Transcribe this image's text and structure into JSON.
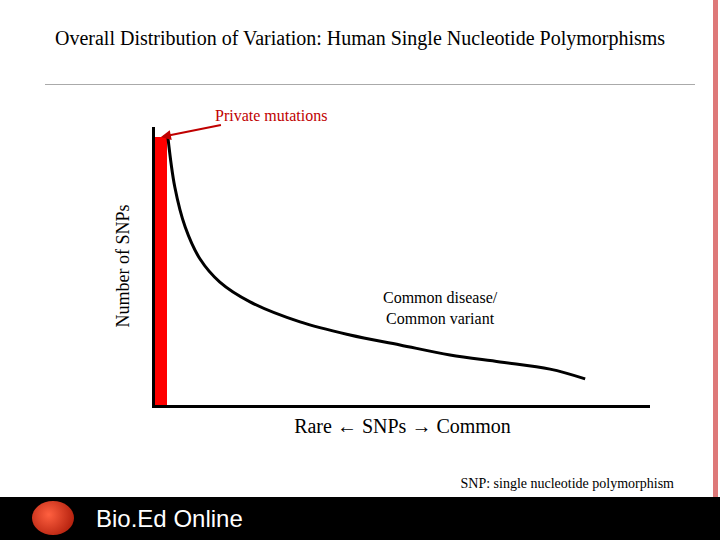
{
  "chart_data": {
    "type": "line",
    "title": "Overall Distribution of Variation: Human Single Nucleotide Polymorphisms",
    "x_label": "Rare ← SNPs → Common",
    "y_label": "Number of SNPs",
    "xlim": [
      0,
      100
    ],
    "ylim": [
      0,
      100
    ],
    "tick_labels": false,
    "grid": false,
    "series": [
      {
        "type": "bar",
        "color": "#ff0000",
        "x": [
          1.2
        ],
        "values": [
          96.4
        ]
      },
      {
        "type": "line",
        "color": "#000000",
        "line_style": "solid",
        "x": [
          2.6,
          4.0,
          6.1,
          9.1,
          13.1,
          19.2,
          29.3,
          39.4,
          49.5,
          59.6,
          69.7,
          79.8,
          86.9
        ],
        "values": [
          96.4,
          78.4,
          64.0,
          52.5,
          44.2,
          37.1,
          29.9,
          25.2,
          21.6,
          18.0,
          15.5,
          12.9,
          9.4
        ]
      }
    ],
    "annotations": [
      "Private mutations",
      "Common disease/ Common variant"
    ]
  },
  "footnote": "SNP: single nucleotide polymorphism",
  "footer": "Bio.Ed Online"
}
